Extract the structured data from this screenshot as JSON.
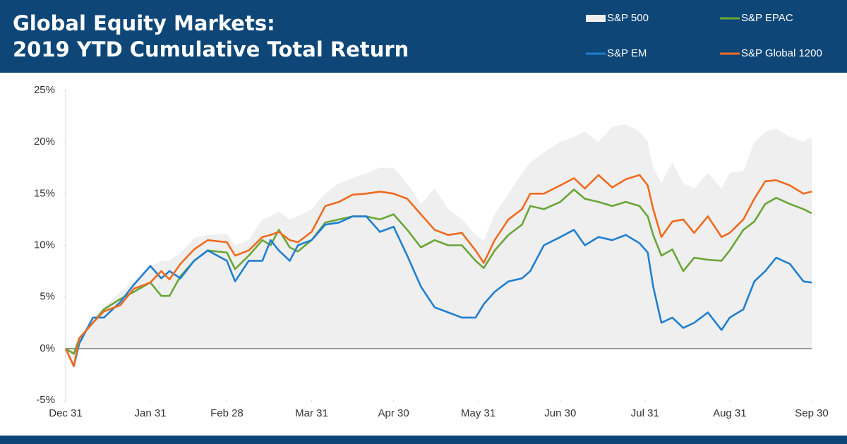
{
  "chart_data": {
    "type": "line",
    "title": [
      "Global Equity Markets:",
      "2019 YTD Cumulative Total Return"
    ],
    "x": [
      0,
      3,
      5,
      10,
      14,
      20,
      25,
      31,
      35,
      38,
      42,
      47,
      52,
      59,
      62,
      67,
      72,
      75,
      78,
      82,
      85,
      90,
      95,
      100,
      105,
      110,
      115,
      120,
      125,
      130,
      135,
      140,
      145,
      150,
      153,
      157,
      162,
      167,
      170,
      175,
      181,
      186,
      190,
      195,
      200,
      205,
      210,
      213,
      215,
      218,
      222,
      226,
      230,
      235,
      240,
      243,
      248,
      252,
      256,
      260,
      265,
      270,
      273
    ],
    "series": [
      {
        "name": "S&P 500",
        "kind": "area",
        "color": "#efefef",
        "values": [
          0,
          -2,
          1,
          3,
          4,
          5.5,
          6.5,
          7.9,
          8.5,
          8.5,
          9.3,
          10.7,
          11,
          11.1,
          10,
          10.5,
          12.5,
          12.8,
          13.3,
          12.5,
          12.8,
          13.5,
          15,
          16,
          16.5,
          17,
          17.5,
          17.5,
          16,
          14,
          15.5,
          13.5,
          12.5,
          11,
          10.5,
          13,
          15,
          17,
          18,
          19,
          20,
          20.5,
          21,
          20,
          21.5,
          21.7,
          21,
          20,
          17.5,
          16,
          18,
          16,
          15.5,
          17,
          15.5,
          17,
          17.2,
          20,
          21,
          21.3,
          20.5,
          20,
          20.5
        ]
      },
      {
        "name": "S&P EPAC",
        "kind": "line",
        "color": "#6aa538",
        "values": [
          0,
          -0.5,
          1,
          2.5,
          3.8,
          4.8,
          5.5,
          6.4,
          5.1,
          5.1,
          7,
          8.5,
          9.5,
          9.3,
          7.7,
          9,
          10.5,
          10,
          11.5,
          9.8,
          9.4,
          10.5,
          12.2,
          12.5,
          12.8,
          12.8,
          12.5,
          13,
          11.5,
          9.8,
          10.5,
          10,
          10,
          8.5,
          7.8,
          9.5,
          11,
          12,
          13.8,
          13.5,
          14.2,
          15.4,
          14.5,
          14.2,
          13.8,
          14.2,
          13.8,
          12.8,
          11,
          9,
          9.6,
          7.5,
          8.8,
          8.6,
          8.5,
          9.5,
          11.5,
          12.3,
          14,
          14.6,
          14,
          13.5,
          13.1
        ]
      },
      {
        "name": "S&P EM",
        "kind": "line",
        "color": "#1f7fd1",
        "values": [
          0,
          -1.7,
          0.5,
          3,
          3,
          4.5,
          6.2,
          8,
          6.8,
          7.5,
          6.8,
          8.5,
          9.5,
          8.5,
          6.5,
          8.5,
          8.5,
          10.5,
          9.5,
          8.5,
          10,
          10.5,
          12,
          12.2,
          12.8,
          12.8,
          11.3,
          11.8,
          9,
          6,
          4,
          3.5,
          3,
          3,
          4.3,
          5.5,
          6.5,
          6.8,
          7.5,
          10,
          10.8,
          11.5,
          10,
          10.8,
          10.5,
          11,
          10.2,
          9.3,
          6,
          2.5,
          3,
          2,
          2.5,
          3.5,
          1.8,
          3,
          3.8,
          6.5,
          7.5,
          8.8,
          8.2,
          6.5,
          6.4
        ]
      },
      {
        "name": "S&P Global 1200",
        "kind": "line",
        "color": "#ee6b1f",
        "values": [
          0,
          -1.7,
          1,
          2.5,
          3.6,
          4.2,
          5.8,
          6.4,
          7.5,
          6.7,
          8.2,
          9.6,
          10.5,
          10.3,
          9,
          9.5,
          10.8,
          11,
          11.3,
          10.5,
          10.3,
          11.3,
          13.8,
          14.2,
          14.9,
          15,
          15.2,
          15,
          14.5,
          13,
          11.5,
          11,
          11.2,
          9.5,
          8.3,
          10.5,
          12.5,
          13.5,
          15,
          15,
          15.8,
          16.5,
          15.5,
          16.8,
          15.6,
          16.4,
          16.8,
          15.8,
          13.5,
          10.8,
          12.3,
          12.5,
          11.2,
          12.8,
          10.8,
          11.2,
          12.5,
          14.5,
          16.2,
          16.3,
          15.8,
          15,
          15.2
        ]
      }
    ],
    "xlim": [
      0,
      273
    ],
    "xticks": [
      {
        "value": 0,
        "label": "Dec 31"
      },
      {
        "value": 31,
        "label": "Jan 31"
      },
      {
        "value": 59,
        "label": "Feb 28"
      },
      {
        "value": 90,
        "label": "Mar 31"
      },
      {
        "value": 120,
        "label": "Apr 30"
      },
      {
        "value": 151,
        "label": "May 31"
      },
      {
        "value": 181,
        "label": "Jun 30"
      },
      {
        "value": 212,
        "label": "Jul 31"
      },
      {
        "value": 243,
        "label": "Aug 31"
      },
      {
        "value": 273,
        "label": "Sep 30"
      }
    ],
    "ylim": [
      -5,
      25
    ],
    "yticks": [
      {
        "value": -5,
        "label": "-5%"
      },
      {
        "value": 0,
        "label": "0%"
      },
      {
        "value": 5,
        "label": "5%"
      },
      {
        "value": 10,
        "label": "10%"
      },
      {
        "value": 15,
        "label": "15%"
      },
      {
        "value": 20,
        "label": "20%"
      },
      {
        "value": 25,
        "label": "25%"
      }
    ],
    "grid": false
  }
}
